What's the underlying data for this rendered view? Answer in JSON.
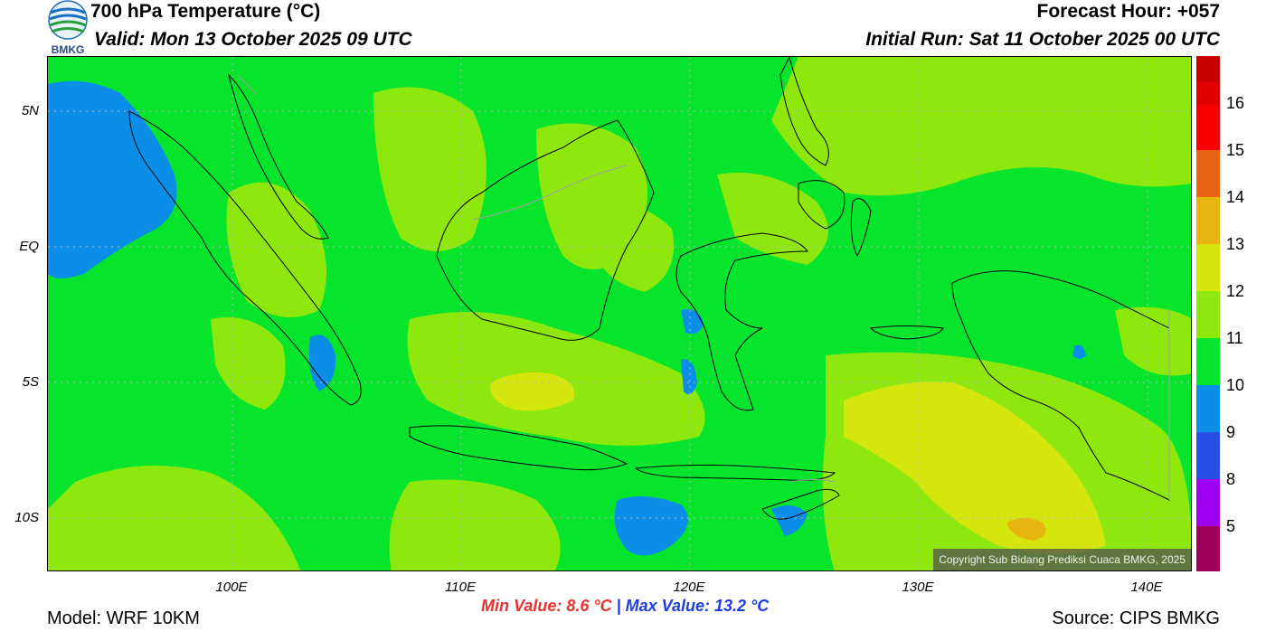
{
  "header": {
    "title": "700 hPa Temperature (°C)",
    "valid": "Valid: Mon 13 October 2025 09 UTC",
    "forecast_hour": "Forecast Hour: +057",
    "initial_run": "Initial Run: Sat 11 October 2025 00 UTC",
    "logo_text": "BMKG"
  },
  "map": {
    "lat_labels": [
      "5N",
      "EQ",
      "5S",
      "10S"
    ],
    "lon_labels": [
      "100E",
      "110E",
      "120E",
      "130E",
      "140E"
    ],
    "copyright": "Copyright Sub Bidang Prediksi Cuaca BMKG, 2025",
    "colors": {
      "temp_11": "#06e52c",
      "temp_12": "#8ee80e",
      "temp_13": "#d4e60e",
      "temp_14": "#e8b40e",
      "temp_10": "#0a8ee8",
      "coast": "#000000",
      "border": "#a0a0a0"
    }
  },
  "legend": {
    "labels": [
      "16",
      "15",
      "14",
      "13",
      "12",
      "11",
      "10",
      "9",
      "8",
      "5"
    ],
    "colors": [
      "#c80000",
      "#fa0000",
      "#f03c0a",
      "#e86414",
      "#e8b40e",
      "#d4e60e",
      "#8ee80e",
      "#06e52c",
      "#0a8ee8",
      "#2850e6",
      "#a000f0",
      "#a0005a"
    ]
  },
  "footer": {
    "min_value": "Min Value: 8.6 °C",
    "separator": "|",
    "max_value": "Max Value: 13.2 °C",
    "model": "Model: WRF 10KM",
    "source": "Source: CIPS BMKG"
  }
}
